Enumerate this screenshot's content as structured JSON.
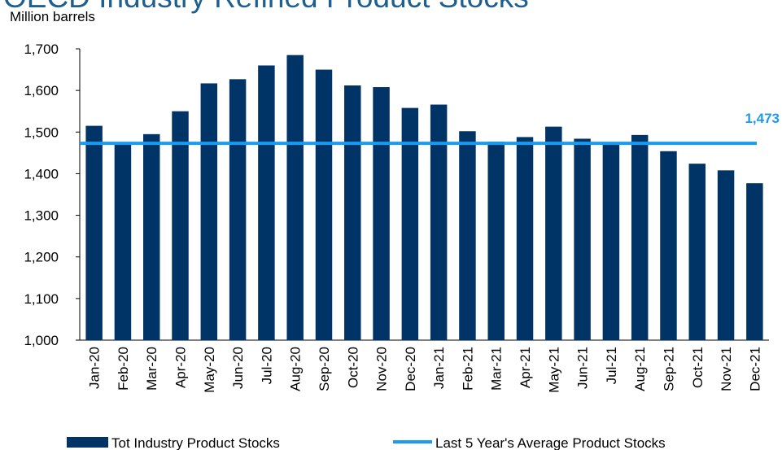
{
  "chart_data": {
    "type": "bar",
    "title": "OECD Industry Refined Product Stocks",
    "y_axis_label": "Million barrels",
    "categories": [
      "Jan-20",
      "Feb-20",
      "Mar-20",
      "Apr-20",
      "May-20",
      "Jun-20",
      "Jul-20",
      "Aug-20",
      "Sep-20",
      "Oct-20",
      "Nov-20",
      "Dec-20",
      "Jan-21",
      "Feb-21",
      "Mar-21",
      "Apr-21",
      "May-21",
      "Jun-21",
      "Jul-21",
      "Aug-21",
      "Sep-21",
      "Oct-21",
      "Nov-21",
      "Dec-21"
    ],
    "series": [
      {
        "name": "Tot Industry Product Stocks",
        "color": "#003366",
        "values": [
          1515,
          1470,
          1495,
          1550,
          1617,
          1627,
          1660,
          1685,
          1650,
          1612,
          1608,
          1558,
          1566,
          1502,
          1477,
          1488,
          1513,
          1484,
          1472,
          1493,
          1454,
          1424,
          1408,
          1377
        ]
      }
    ],
    "reference_line": {
      "name": "Last 5 Year's Average Product Stocks",
      "color": "#1a9bf0",
      "value": 1473,
      "value_label": "1,473"
    },
    "ylim": [
      1000,
      1700
    ],
    "yticks": [
      {
        "value": 1000,
        "label": "1,000"
      },
      {
        "value": 1100,
        "label": "1,100"
      },
      {
        "value": 1200,
        "label": "1,200"
      },
      {
        "value": 1300,
        "label": "1,300"
      },
      {
        "value": 1400,
        "label": "1,400"
      },
      {
        "value": 1500,
        "label": "1,500"
      },
      {
        "value": 1600,
        "label": "1,600"
      },
      {
        "value": 1700,
        "label": "1,700"
      }
    ]
  }
}
